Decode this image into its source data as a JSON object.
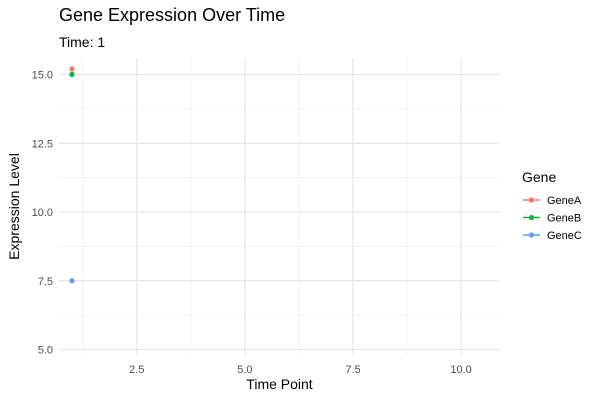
{
  "chart_data": {
    "type": "scatter",
    "title": "Gene Expression Over Time",
    "subtitle": "Time: 1",
    "xlabel": "Time Point",
    "ylabel": "Expression Level",
    "xlim": [
      0.7,
      10.9
    ],
    "ylim": [
      4.8,
      15.6
    ],
    "x_ticks": [
      2.5,
      5.0,
      7.5,
      10.0
    ],
    "x_tick_labels": [
      "2.5",
      "5.0",
      "7.5",
      "10.0"
    ],
    "x_minor_ticks": [
      1.25,
      3.75,
      6.25,
      8.75
    ],
    "y_ticks": [
      5.0,
      7.5,
      10.0,
      12.5,
      15.0
    ],
    "y_tick_labels": [
      "5.0",
      "7.5",
      "10.0",
      "12.5",
      "15.0"
    ],
    "y_minor_ticks": [
      6.25,
      8.75,
      11.25,
      13.75
    ],
    "grid": true,
    "legend": {
      "title": "Gene",
      "placement": "right",
      "entries": [
        "GeneA",
        "GeneB",
        "GeneC"
      ]
    },
    "series": [
      {
        "name": "GeneA",
        "color": "#F8766D",
        "x": [
          1
        ],
        "y": [
          15.2
        ]
      },
      {
        "name": "GeneB",
        "color": "#00BA38",
        "x": [
          1
        ],
        "y": [
          15.0
        ]
      },
      {
        "name": "GeneC",
        "color": "#619CFF",
        "x": [
          1
        ],
        "y": [
          7.5
        ]
      }
    ]
  }
}
